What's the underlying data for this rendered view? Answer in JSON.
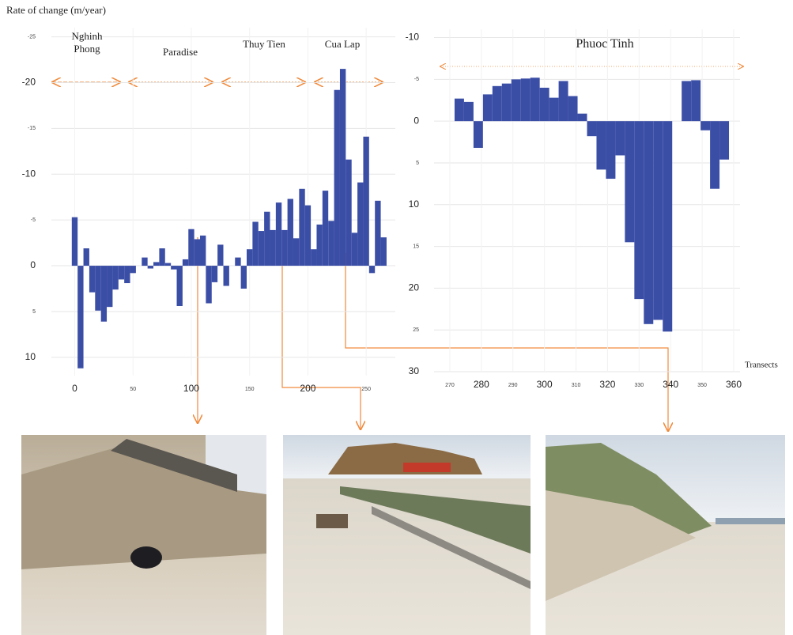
{
  "chart_data": [
    {
      "type": "bar",
      "ylabel": "Rate of change (m/year)",
      "annotations": [
        "Nghinh Phong",
        "Paradise",
        "Thuy Tien",
        "Cua Lap"
      ],
      "x": [
        0,
        5,
        10,
        15,
        20,
        25,
        30,
        35,
        40,
        45,
        50,
        55,
        60,
        65,
        70,
        75,
        80,
        85,
        90,
        95,
        100,
        105,
        110,
        115,
        120,
        125,
        130,
        135,
        140,
        145,
        150,
        155,
        160,
        165,
        170,
        175,
        180,
        185,
        190,
        195,
        200,
        205,
        210,
        215,
        220,
        225,
        230,
        235,
        240,
        245,
        250,
        255,
        260,
        265
      ],
      "values": [
        -5.3,
        11.2,
        -1.9,
        2.9,
        4.9,
        6.1,
        4.5,
        2.6,
        1.5,
        1.9,
        0.8,
        0,
        -0.9,
        0.3,
        -0.4,
        -1.9,
        -0.3,
        0.4,
        4.4,
        -0.7,
        -4,
        -2.9,
        -3.3,
        4.1,
        1.8,
        -2.3,
        2.2,
        0,
        -0.9,
        2.5,
        -1.8,
        -4.8,
        -3.8,
        -5.9,
        -3.9,
        -6.9,
        -3.9,
        -7.3,
        -3,
        -8.4,
        -6.6,
        -1.8,
        -4.5,
        -8.2,
        -4.9,
        -19.2,
        -21.5,
        -11.6,
        -3.6,
        -9.1,
        -14.1,
        0.8,
        -7.1,
        -3.1
      ],
      "color": "#3b4ea6",
      "bar_width": 5,
      "xlim": [
        -20,
        275
      ],
      "xticks": [
        0,
        50,
        100,
        150,
        200,
        250
      ],
      "ylim": [
        -26,
        12
      ],
      "yticks": [
        -25,
        -20,
        -15,
        -10,
        -5,
        0,
        5,
        10
      ],
      "inverted_y": true,
      "grid": true
    },
    {
      "type": "bar",
      "xlabel": "Transects",
      "annotations": [
        "Phuoc Tinh"
      ],
      "x": [
        273,
        276,
        279,
        282,
        285,
        288,
        291,
        294,
        297,
        300,
        303,
        306,
        309,
        312,
        315,
        318,
        321,
        324,
        327,
        330,
        333,
        336,
        339,
        342,
        345,
        348,
        351,
        354,
        357
      ],
      "values": [
        -2.7,
        -2.3,
        3.2,
        -3.2,
        -4.2,
        -4.5,
        -5.0,
        -5.1,
        -5.2,
        -4.0,
        -2.8,
        -4.8,
        -3.0,
        -0.9,
        1.8,
        5.8,
        6.9,
        4.1,
        14.5,
        21.3,
        24.3,
        23.8,
        25.2,
        0,
        -4.8,
        -4.9,
        1.1,
        8.1,
        4.6
      ],
      "color": "#3b4ea6",
      "bar_width": 3,
      "xlim": [
        265,
        362
      ],
      "xticks": [
        270,
        280,
        290,
        300,
        310,
        320,
        330,
        340,
        350,
        360
      ],
      "ylim": [
        -11,
        30
      ],
      "yticks": [
        -10,
        -5,
        0,
        5,
        10,
        15,
        20,
        25,
        30
      ],
      "inverted_y": true,
      "grid": true
    }
  ]
}
